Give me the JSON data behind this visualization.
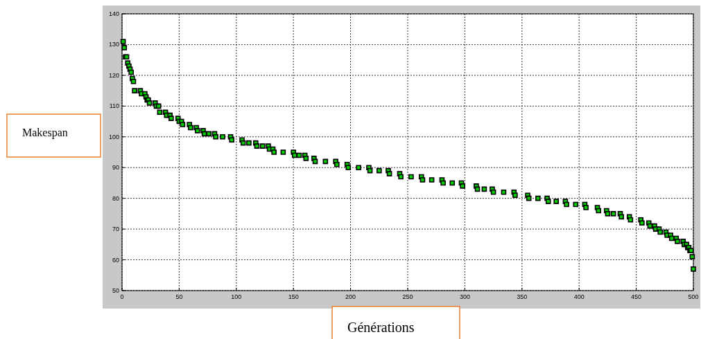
{
  "chart_data": {
    "type": "scatter",
    "xlabel": "Générations",
    "ylabel": "Makespan",
    "xlim": [
      0,
      500
    ],
    "xticks": [
      0,
      50,
      100,
      150,
      200,
      250,
      300,
      350,
      400,
      450,
      500
    ],
    "ylim": [
      50,
      140
    ],
    "yticks": [
      50,
      60,
      70,
      80,
      90,
      100,
      110,
      120,
      130,
      140
    ],
    "grid": true,
    "marker": "square",
    "series": [
      {
        "color": "#00cc00",
        "x": [
          1,
          2,
          3,
          4,
          5,
          6,
          7,
          8,
          9,
          10,
          11,
          16,
          17,
          20,
          21,
          22,
          23,
          24,
          29,
          30,
          32,
          33,
          38,
          39,
          42,
          43,
          49,
          50,
          52,
          53,
          59,
          60,
          65,
          66,
          71,
          72,
          76,
          81,
          82,
          88,
          95,
          96,
          105,
          106,
          111,
          117,
          118,
          123,
          128,
          129,
          132,
          133,
          141,
          150,
          151,
          155,
          160,
          161,
          168,
          169,
          178,
          187,
          188,
          197,
          198,
          207,
          216,
          217,
          225,
          233,
          234,
          243,
          244,
          253,
          262,
          263,
          271,
          280,
          281,
          289,
          297,
          298,
          310,
          311,
          317,
          324,
          325,
          334,
          343,
          344,
          355,
          356,
          364,
          372,
          373,
          380,
          388,
          389,
          397,
          405,
          406,
          416,
          417,
          424,
          425,
          430,
          436,
          437,
          444,
          445,
          454,
          455,
          461,
          462,
          466,
          467,
          470,
          471,
          476,
          477,
          480,
          481,
          485,
          486,
          491,
          492,
          494,
          495,
          496,
          497,
          498,
          499,
          500
        ],
        "values": [
          131,
          129,
          126,
          126,
          124,
          123,
          122,
          121,
          119,
          118,
          115,
          115,
          114,
          114,
          113,
          112,
          112,
          111,
          111,
          110,
          110,
          108,
          108,
          107,
          107,
          106,
          106,
          105,
          105,
          104,
          104,
          103,
          103,
          102,
          102,
          101,
          101,
          101,
          100,
          100,
          100,
          99,
          99,
          98,
          98,
          98,
          97,
          97,
          97,
          96,
          96,
          95,
          95,
          95,
          94,
          94,
          94,
          93,
          93,
          92,
          92,
          92,
          91,
          91,
          90,
          90,
          90,
          89,
          89,
          89,
          88,
          88,
          87,
          87,
          87,
          86,
          86,
          86,
          85,
          85,
          85,
          84,
          84,
          83,
          83,
          83,
          82,
          82,
          82,
          81,
          81,
          80,
          80,
          80,
          79,
          79,
          79,
          78,
          78,
          78,
          77,
          77,
          76,
          76,
          75,
          75,
          75,
          74,
          74,
          73,
          73,
          72,
          72,
          71,
          71,
          70,
          70,
          69,
          69,
          68,
          68,
          67,
          67,
          66,
          66,
          65,
          65,
          64,
          64,
          63,
          63,
          61,
          57
        ]
      }
    ]
  }
}
